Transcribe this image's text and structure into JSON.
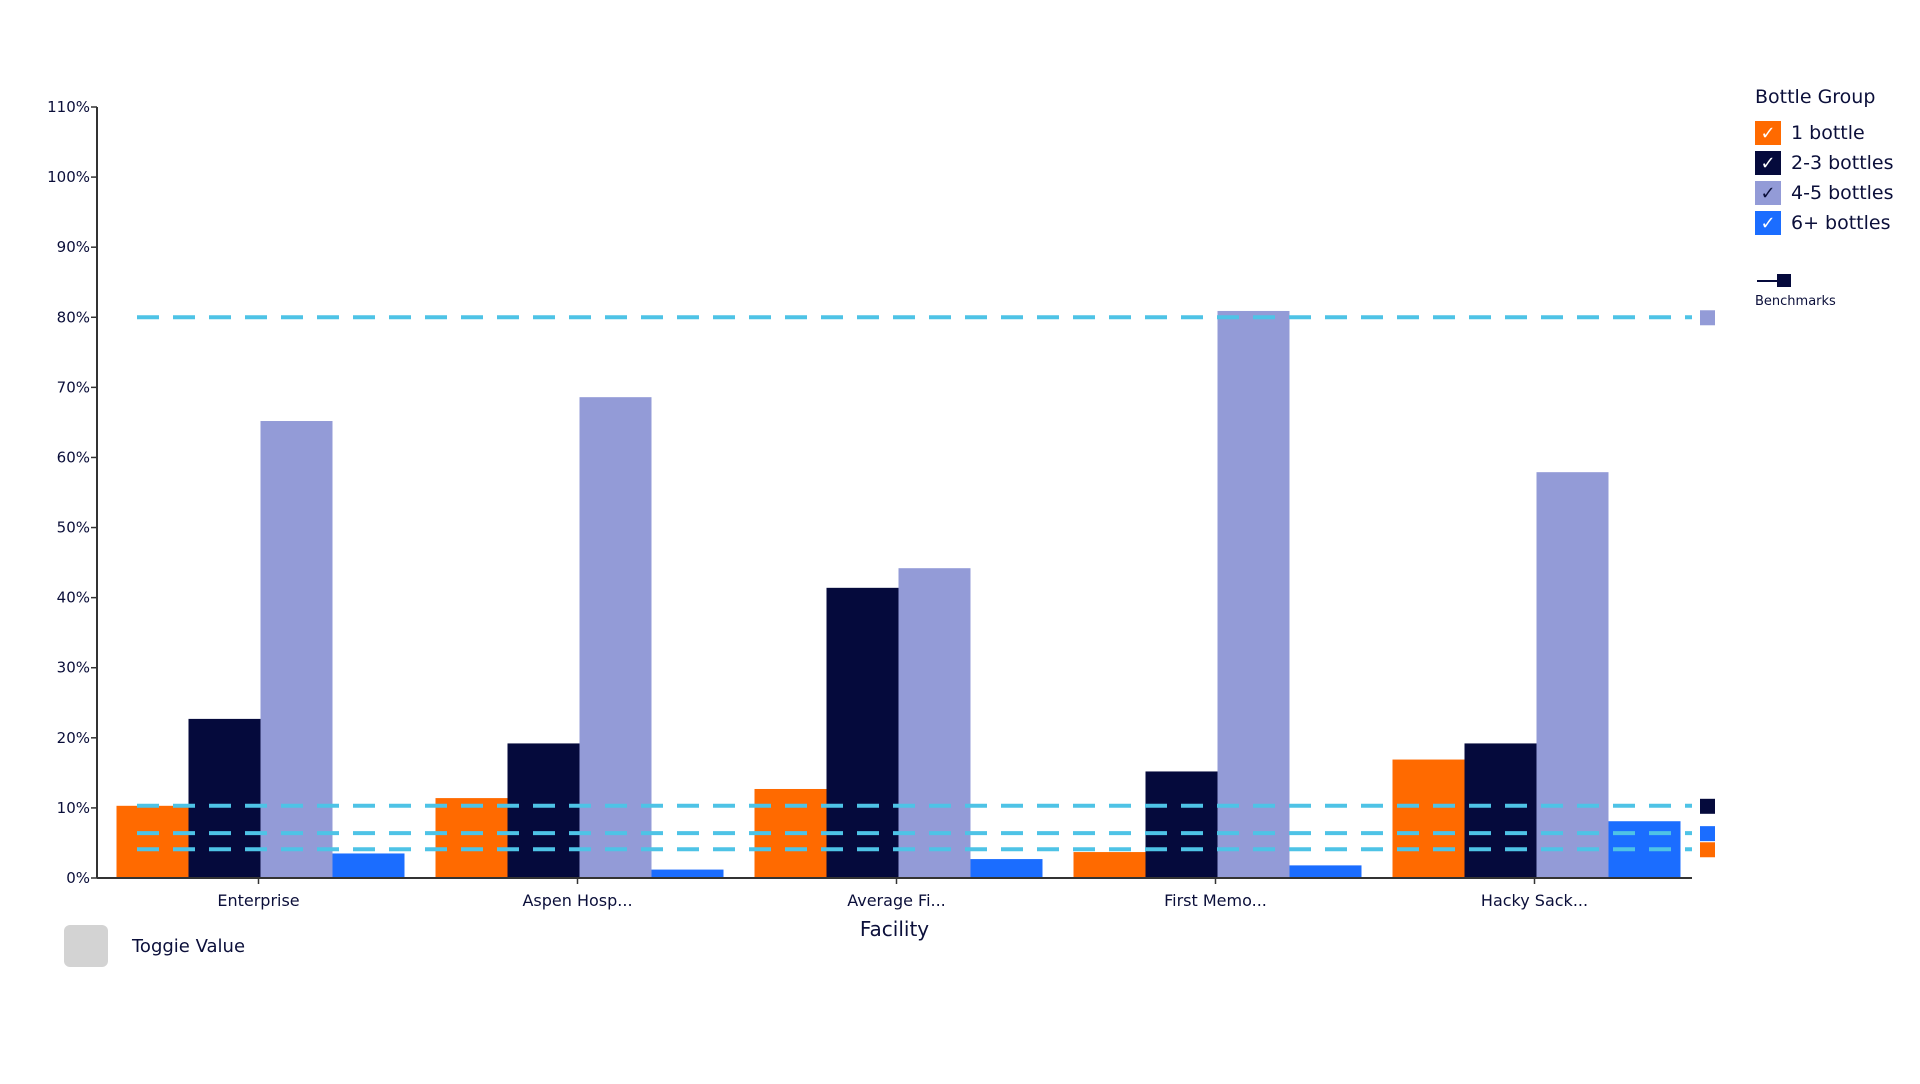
{
  "chart_data": {
    "type": "bar",
    "title": "",
    "xlabel": "Facility",
    "ylabel": "",
    "ylim": [
      0,
      110
    ],
    "yticks": [
      0,
      10,
      20,
      30,
      40,
      50,
      60,
      70,
      80,
      90,
      100,
      110
    ],
    "ytick_labels": [
      "0%",
      "10%",
      "20%",
      "30%",
      "40%",
      "50%",
      "60%",
      "70%",
      "80%",
      "90%",
      "100%",
      "110%"
    ],
    "categories": [
      "Enterprise",
      "Aspen Hosp...",
      "Average Fi...",
      "First Memo...",
      "Hacky Sack..."
    ],
    "series": [
      {
        "name": "1 bottle",
        "color": "#ff6a00",
        "values": [
          10.3,
          11.4,
          12.7,
          3.7,
          16.9
        ]
      },
      {
        "name": "2-3 bottles",
        "color": "#050a3c",
        "values": [
          22.7,
          19.2,
          41.4,
          15.2,
          19.2
        ]
      },
      {
        "name": "4-5 bottles",
        "color": "#939bd7",
        "values": [
          65.2,
          68.6,
          44.2,
          80.9,
          57.9
        ]
      },
      {
        "name": "6+ bottles",
        "color": "#1b6dff",
        "values": [
          3.5,
          1.2,
          2.7,
          1.8,
          8.1
        ]
      }
    ],
    "benchmarks": [
      {
        "series": "4-5 bottles",
        "value": 80.0
      },
      {
        "series": "2-3 bottles",
        "value": 10.3
      },
      {
        "series": "6+ bottles",
        "value": 6.4
      },
      {
        "series": "1 bottle",
        "value": 4.1
      }
    ],
    "benchmark_line_color": "#4ec3e6",
    "grid": false,
    "legend_position": "top-right"
  },
  "legend": {
    "title": "Bottle Group",
    "check_glyph": "✓",
    "items": [
      {
        "label": "1 bottle",
        "color": "#ff6a00"
      },
      {
        "label": "2-3 bottles",
        "color": "#050a3c"
      },
      {
        "label": "4-5 bottles",
        "color": "#939bd7"
      },
      {
        "label": "6+ bottles",
        "color": "#1b6dff"
      }
    ],
    "benchmark_label": "Benchmarks",
    "benchmark_icon": "benchmark-line-icon"
  },
  "toggle": {
    "label": "Toggie Value"
  }
}
